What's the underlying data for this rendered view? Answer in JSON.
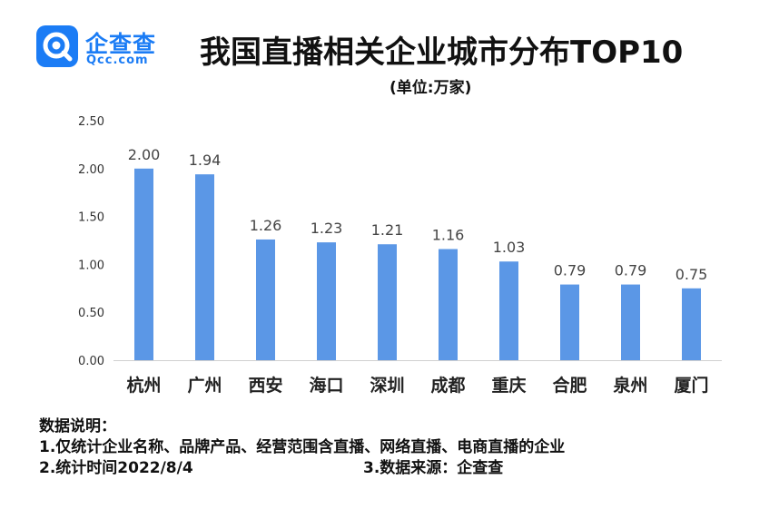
{
  "brand": {
    "name": "企查查",
    "domain": "Qcc.com",
    "color": "#1b7cf5"
  },
  "header": {
    "title": "我国直播相关企业城市分布TOP10",
    "subtitle": "(单位:万家)"
  },
  "chart_data": {
    "type": "bar",
    "title": "我国直播相关企业城市分布TOP10",
    "unit": "(单位:万家)",
    "categories": [
      "杭州",
      "广州",
      "西安",
      "海口",
      "深圳",
      "成都",
      "重庆",
      "合肥",
      "泉州",
      "厦门"
    ],
    "values": [
      2.0,
      1.94,
      1.26,
      1.23,
      1.21,
      1.16,
      1.03,
      0.79,
      0.79,
      0.75
    ],
    "value_labels": [
      "2.00",
      "1.94",
      "1.26",
      "1.23",
      "1.21",
      "1.16",
      "1.03",
      "0.79",
      "0.79",
      "0.75"
    ],
    "y_ticks": [
      "0.00",
      "0.50",
      "1.00",
      "1.50",
      "2.00",
      "2.50"
    ],
    "ylim": [
      0,
      2.5
    ],
    "grid": false,
    "bar_color": "#5b97e6"
  },
  "notes": {
    "heading": "数据说明：",
    "line1": "1.仅统计企业名称、品牌产品、经营范围含直播、网络直播、电商直播的企业",
    "line2": "2.统计时间2022/8/4",
    "line3": "3.数据来源：企查查"
  }
}
